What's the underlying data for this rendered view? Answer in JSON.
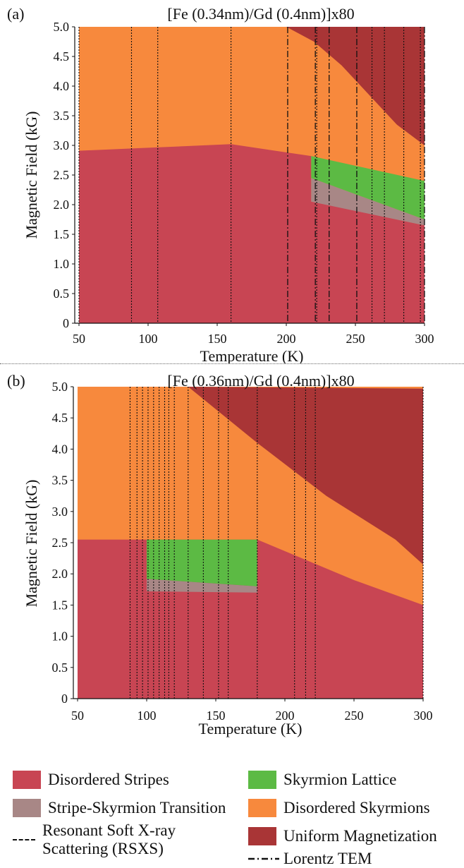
{
  "colors": {
    "disordered_stripes": "#c84553",
    "stripe_skyrmion_transition": "#a88786",
    "skyrmion_lattice": "#5cba44",
    "disordered_skyrmions": "#f7893d",
    "uniform_magnetization": "#a93536"
  },
  "chart_data": [
    {
      "type": "area",
      "panel_label": "(a)",
      "title": "[Fe (0.34nm)/Gd (0.4nm)]x80",
      "xlabel": "Temperature (K)",
      "ylabel": "Magnetic Field (kG)",
      "xlim": [
        50,
        300
      ],
      "ylim": [
        0,
        5.0
      ],
      "xticks": [
        "50",
        "100",
        "150",
        "200",
        "250",
        "300"
      ],
      "yticks": [
        "0",
        "0.5",
        "1.0",
        "1.5",
        "2.0",
        "2.5",
        "3.0",
        "3.5",
        "4.0",
        "4.5",
        "5.0"
      ],
      "regions": [
        {
          "phase": "disordered_skyrmions",
          "polygon": [
            [
              50,
              0
            ],
            [
              300,
              0
            ],
            [
              300,
              5.0
            ],
            [
              50,
              5.0
            ]
          ]
        },
        {
          "phase": "uniform_magnetization",
          "polygon": [
            [
              200,
              5.0
            ],
            [
              220,
              4.75
            ],
            [
              240,
              4.35
            ],
            [
              260,
              3.85
            ],
            [
              280,
              3.35
            ],
            [
              300,
              3.0
            ],
            [
              300,
              5.0
            ]
          ]
        },
        {
          "phase": "disordered_stripes",
          "polygon": [
            [
              50,
              0
            ],
            [
              300,
              0
            ],
            [
              300,
              1.65
            ],
            [
              280,
              1.75
            ],
            [
              260,
              1.85
            ],
            [
              240,
              1.95
            ],
            [
              218,
              2.05
            ],
            [
              218,
              2.82
            ],
            [
              160,
              3.02
            ],
            [
              100,
              2.96
            ],
            [
              50,
              2.91
            ]
          ]
        },
        {
          "phase": "stripe_skyrmion_transition",
          "polygon": [
            [
              218,
              2.05
            ],
            [
              300,
              1.65
            ],
            [
              300,
              1.75
            ],
            [
              218,
              2.45
            ]
          ]
        },
        {
          "phase": "skyrmion_lattice",
          "polygon": [
            [
              218,
              2.45
            ],
            [
              218,
              2.82
            ],
            [
              300,
              2.4
            ],
            [
              300,
              1.75
            ]
          ]
        }
      ],
      "rsxs_temperatures": [
        50,
        88,
        107,
        160,
        222,
        262,
        271,
        285,
        297
      ],
      "ltem_temperatures": [
        201,
        221,
        231,
        251,
        300
      ]
    },
    {
      "type": "area",
      "panel_label": "(b)",
      "title": "[Fe (0.36nm)/Gd (0.4nm)]x80",
      "xlabel": "Temperature (K)",
      "ylabel": "Magnetic Field (kG)",
      "xlim": [
        50,
        300
      ],
      "ylim": [
        0,
        5.0
      ],
      "xticks": [
        "50",
        "100",
        "150",
        "200",
        "250",
        "300"
      ],
      "yticks": [
        "0",
        "0.5",
        "1.0",
        "1.5",
        "2.0",
        "2.5",
        "3.0",
        "3.5",
        "4.0",
        "4.5",
        "5.0"
      ],
      "regions": [
        {
          "phase": "disordered_skyrmions",
          "polygon": [
            [
              50,
              0
            ],
            [
              300,
              0
            ],
            [
              300,
              5.0
            ],
            [
              50,
              5.0
            ]
          ]
        },
        {
          "phase": "uniform_magnetization",
          "polygon": [
            [
              130,
              5.0
            ],
            [
              300,
              4.97
            ],
            [
              300,
              2.15
            ],
            [
              280,
              2.55
            ],
            [
              230,
              3.25
            ],
            [
              180,
              4.1
            ]
          ]
        },
        {
          "phase": "disordered_stripes",
          "polygon": [
            [
              50,
              0
            ],
            [
              300,
              0
            ],
            [
              300,
              1.5
            ],
            [
              250,
              1.9
            ],
            [
              180,
              2.55
            ],
            [
              100,
              2.55
            ],
            [
              50,
              2.55
            ]
          ]
        },
        {
          "phase": "stripe_skyrmion_transition",
          "polygon": [
            [
              100,
              1.72
            ],
            [
              180,
              1.7
            ],
            [
              180,
              1.8
            ],
            [
              100,
              1.92
            ]
          ]
        },
        {
          "phase": "skyrmion_lattice",
          "polygon": [
            [
              100,
              1.92
            ],
            [
              180,
              1.8
            ],
            [
              180,
              2.55
            ],
            [
              100,
              2.55
            ]
          ]
        }
      ],
      "rsxs_temperatures": [
        88,
        93,
        97,
        101,
        105,
        109,
        113,
        116,
        120,
        130,
        141,
        152,
        159,
        180,
        207,
        215,
        222,
        300
      ]
    }
  ],
  "legend": {
    "items": [
      {
        "label": "Disordered Stripes",
        "color": "#c84553"
      },
      {
        "label": "Skyrmion Lattice",
        "color": "#5cba44"
      },
      {
        "label": "Stripe-Skyrmion Transition",
        "color": "#a88786"
      },
      {
        "label": "Disordered Skyrmions",
        "color": "#f7893d"
      },
      {
        "label": "Uniform Magnetization",
        "color": "#a93536"
      }
    ],
    "rsxs_line1": "Resonant Soft X-ray",
    "rsxs_line2": "Scattering (RSXS)",
    "ltem": "Lorentz TEM"
  }
}
